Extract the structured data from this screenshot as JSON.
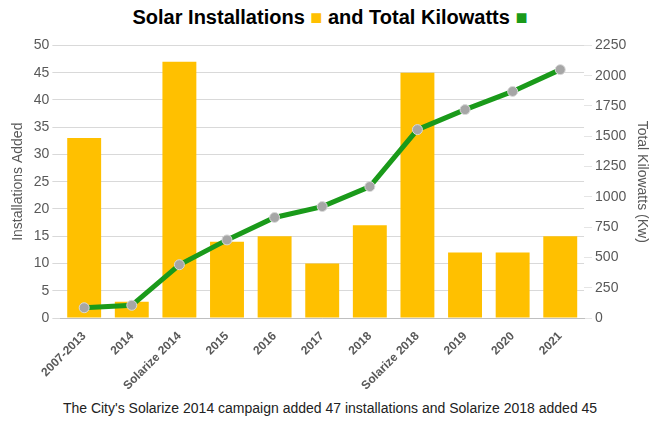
{
  "chart_data": {
    "type": "bar",
    "title": "Solar Installations ■ and Total Kilowatts ■",
    "categories": [
      "2007-2013",
      "2014",
      "Solarize 2014",
      "2015",
      "2016",
      "2017",
      "2018",
      "Solarize 2018",
      "2019",
      "2020",
      "2021"
    ],
    "series": [
      {
        "name": "Solar Installations",
        "type": "bar",
        "color": "#ffc000",
        "values": [
          33,
          3,
          47,
          14,
          15,
          10,
          17,
          45,
          12,
          12,
          15
        ]
      },
      {
        "name": "Total Kilowatts",
        "type": "line",
        "axis": "y2",
        "color": "#1a9a1a",
        "marker": "circle",
        "line_style": "solid",
        "values": [
          85,
          105,
          440,
          645,
          830,
          920,
          1085,
          1555,
          1720,
          1870,
          2050
        ]
      }
    ],
    "y_label": "Installations Added",
    "y2_label": "Total Kilowatts (Kw)",
    "ylim": [
      0,
      50
    ],
    "yticks": [
      0,
      5,
      10,
      15,
      20,
      25,
      30,
      35,
      40,
      45,
      50
    ],
    "y2lim": [
      0,
      2250
    ],
    "y2ticks": [
      0,
      250,
      500,
      750,
      1000,
      1250,
      1500,
      1750,
      2000,
      2250
    ],
    "grid": true,
    "annotation": "The City's Solarize 2014 campaign added 47 installations and Solarize 2018 added 45"
  }
}
